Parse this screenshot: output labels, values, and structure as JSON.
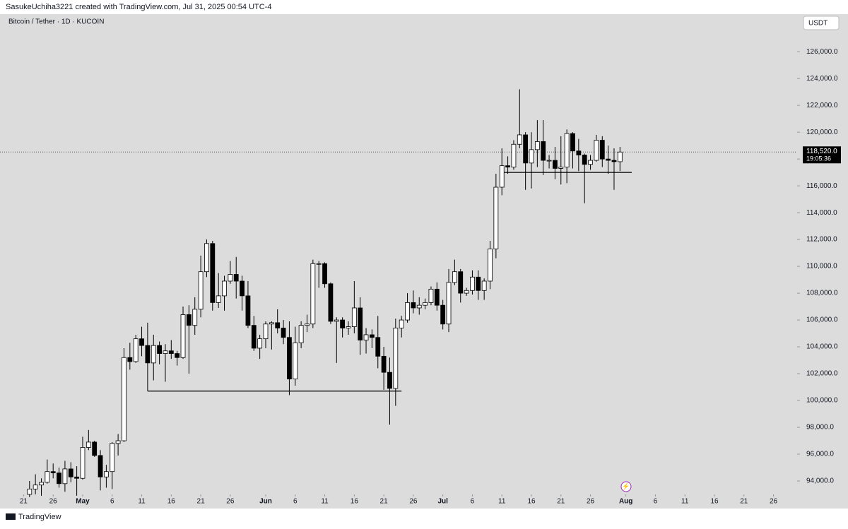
{
  "header": {
    "credit": "SasukeUchiha3221 created with TradingView.com, Jul 31, 2025 00:54 UTC-4",
    "brand": "TradingView"
  },
  "chart_data": {
    "type": "candlestick",
    "title": "Bitcoin / Tether · 1D · KUCOIN",
    "currency": "USDT",
    "x": [
      "2025-04-22",
      "2025-04-23",
      "2025-04-24",
      "2025-04-25",
      "2025-04-26",
      "2025-04-27",
      "2025-04-28",
      "2025-04-29",
      "2025-04-30",
      "2025-05-01",
      "2025-05-02",
      "2025-05-03",
      "2025-05-04",
      "2025-05-05",
      "2025-05-06",
      "2025-05-07",
      "2025-05-08",
      "2025-05-09",
      "2025-05-10",
      "2025-05-11",
      "2025-05-12",
      "2025-05-13",
      "2025-05-14",
      "2025-05-15",
      "2025-05-16",
      "2025-05-17",
      "2025-05-18",
      "2025-05-19",
      "2025-05-20",
      "2025-05-21",
      "2025-05-22",
      "2025-05-23",
      "2025-05-24",
      "2025-05-25",
      "2025-05-26",
      "2025-05-27",
      "2025-05-28",
      "2025-05-29",
      "2025-05-30",
      "2025-05-31",
      "2025-06-01",
      "2025-06-02",
      "2025-06-03",
      "2025-06-04",
      "2025-06-05",
      "2025-06-06",
      "2025-06-07",
      "2025-06-08",
      "2025-06-09",
      "2025-06-10",
      "2025-06-11",
      "2025-06-12",
      "2025-06-13",
      "2025-06-14",
      "2025-06-15",
      "2025-06-16",
      "2025-06-17",
      "2025-06-18",
      "2025-06-19",
      "2025-06-20",
      "2025-06-21",
      "2025-06-22",
      "2025-06-23",
      "2025-06-24",
      "2025-06-25",
      "2025-06-26",
      "2025-06-27",
      "2025-06-28",
      "2025-06-29",
      "2025-06-30",
      "2025-07-01",
      "2025-07-02",
      "2025-07-03",
      "2025-07-04",
      "2025-07-05",
      "2025-07-06",
      "2025-07-07",
      "2025-07-08",
      "2025-07-09",
      "2025-07-10",
      "2025-07-11",
      "2025-07-12",
      "2025-07-13",
      "2025-07-14",
      "2025-07-15",
      "2025-07-16",
      "2025-07-17",
      "2025-07-18",
      "2025-07-19",
      "2025-07-20",
      "2025-07-21",
      "2025-07-22",
      "2025-07-23",
      "2025-07-24",
      "2025-07-25",
      "2025-07-26",
      "2025-07-27",
      "2025-07-28",
      "2025-07-29",
      "2025-07-30",
      "2025-07-31"
    ],
    "open": [
      93000,
      93400,
      93700,
      93900,
      94700,
      94600,
      93800,
      94900,
      94300,
      94200,
      96500,
      96900,
      95900,
      94300,
      94700,
      96800,
      97000,
      103200,
      102900,
      104600,
      104100,
      102800,
      104100,
      103500,
      103700,
      103500,
      103200,
      106400,
      105600,
      106800,
      109600,
      111700,
      107300,
      107800,
      108900,
      109400,
      108900,
      107800,
      105600,
      103900,
      104600,
      105700,
      105800,
      105400,
      104700,
      101600,
      104300,
      105600,
      105700,
      110200,
      110200,
      108700,
      105900,
      106000,
      105400,
      105500,
      106900,
      104500,
      104900,
      104700,
      103300,
      102100,
      100900,
      105400,
      106000,
      107300,
      106900,
      107100,
      107300,
      108300,
      107100,
      105700,
      108800,
      109600,
      108000,
      108200,
      109200,
      108200,
      108900,
      111300,
      115900,
      117500,
      117400,
      119100,
      119800,
      117700,
      118700,
      119300,
      117900,
      117900,
      117300,
      117400,
      119900,
      118600,
      118300,
      117600,
      117900,
      119400,
      118000,
      117900,
      117800
    ],
    "high": [
      94000,
      94500,
      94200,
      95600,
      95300,
      95000,
      95500,
      95400,
      95100,
      97300,
      97800,
      97000,
      96300,
      95200,
      96900,
      97500,
      103900,
      104300,
      104900,
      105500,
      105800,
      104900,
      104400,
      104200,
      104500,
      103700,
      107000,
      107100,
      107700,
      110800,
      112000,
      111900,
      109500,
      109300,
      110400,
      110700,
      109300,
      108900,
      106300,
      104900,
      105900,
      105900,
      106800,
      106000,
      105900,
      105500,
      105900,
      106400,
      110500,
      110400,
      110300,
      108800,
      106200,
      106200,
      105900,
      108900,
      107700,
      105400,
      105300,
      106300,
      104000,
      103200,
      106100,
      106300,
      108000,
      108200,
      107700,
      107600,
      108500,
      108800,
      107500,
      109800,
      110500,
      109800,
      108400,
      109700,
      109700,
      109100,
      111900,
      116900,
      118800,
      118200,
      119400,
      123200,
      120000,
      120000,
      120900,
      120900,
      118300,
      118900,
      119700,
      120200,
      120000,
      119500,
      118400,
      118300,
      119800,
      119700,
      119000,
      118800,
      118900
    ],
    "low": [
      92800,
      93000,
      92900,
      93800,
      94200,
      93500,
      93200,
      93900,
      92900,
      94100,
      96300,
      95800,
      93300,
      93500,
      93400,
      95900,
      96900,
      102300,
      102800,
      103300,
      100700,
      101500,
      102700,
      101400,
      103100,
      102600,
      103100,
      102000,
      104900,
      106200,
      109200,
      106700,
      106900,
      106700,
      108700,
      107600,
      106700,
      105400,
      103700,
      103100,
      103900,
      103800,
      105000,
      104200,
      100400,
      101100,
      103900,
      105100,
      105400,
      108400,
      108400,
      105700,
      102800,
      104700,
      104900,
      105000,
      103400,
      103500,
      103900,
      102400,
      100800,
      98200,
      99600,
      104700,
      105800,
      106500,
      106400,
      106800,
      107100,
      106700,
      105300,
      105100,
      108600,
      107300,
      107800,
      107900,
      107500,
      107500,
      108300,
      110600,
      115300,
      116900,
      117200,
      118800,
      115700,
      115800,
      117400,
      116800,
      117300,
      116500,
      116100,
      116200,
      117300,
      117100,
      114700,
      117200,
      117800,
      117400,
      116900,
      115700,
      117100
    ],
    "close": [
      93400,
      93700,
      93900,
      94700,
      94600,
      93800,
      94900,
      94300,
      94200,
      96500,
      96900,
      95900,
      94300,
      94700,
      96800,
      97000,
      103200,
      102900,
      104600,
      104100,
      102800,
      104100,
      103500,
      103700,
      103500,
      103200,
      106400,
      105600,
      106800,
      109600,
      111700,
      107300,
      107800,
      108900,
      109400,
      108900,
      107800,
      105600,
      103900,
      104600,
      105700,
      105800,
      105400,
      104700,
      101600,
      104300,
      105600,
      105700,
      110200,
      110200,
      108700,
      105900,
      106000,
      105400,
      105500,
      106900,
      104500,
      104900,
      104700,
      103300,
      102100,
      100900,
      105400,
      106000,
      107300,
      106900,
      107100,
      107300,
      108300,
      107100,
      105700,
      108800,
      109600,
      108000,
      108200,
      109200,
      108200,
      108900,
      111300,
      115900,
      117500,
      117400,
      119100,
      119800,
      117700,
      118700,
      119300,
      117900,
      117900,
      117300,
      117400,
      119900,
      118600,
      118300,
      117600,
      117900,
      119400,
      118000,
      117900,
      117800,
      118520
    ],
    "up_color": "#ffffff",
    "down_color": "#000000",
    "wick_color": "#000000",
    "xlim": [
      "2025-04-17",
      "2025-08-30"
    ],
    "ylim": [
      93000,
      128800
    ],
    "xticks": [
      {
        "value": "2025-04-21",
        "label": "21"
      },
      {
        "value": "2025-04-26",
        "label": "26"
      },
      {
        "value": "2025-05-01",
        "label": "May"
      },
      {
        "value": "2025-05-06",
        "label": "6"
      },
      {
        "value": "2025-05-11",
        "label": "11"
      },
      {
        "value": "2025-05-16",
        "label": "16"
      },
      {
        "value": "2025-05-21",
        "label": "21"
      },
      {
        "value": "2025-05-26",
        "label": "26"
      },
      {
        "value": "2025-06-01",
        "label": "Jun"
      },
      {
        "value": "2025-06-06",
        "label": "6"
      },
      {
        "value": "2025-06-11",
        "label": "11"
      },
      {
        "value": "2025-06-16",
        "label": "16"
      },
      {
        "value": "2025-06-21",
        "label": "21"
      },
      {
        "value": "2025-06-26",
        "label": "26"
      },
      {
        "value": "2025-07-01",
        "label": "Jul"
      },
      {
        "value": "2025-07-06",
        "label": "6"
      },
      {
        "value": "2025-07-11",
        "label": "11"
      },
      {
        "value": "2025-07-16",
        "label": "16"
      },
      {
        "value": "2025-07-21",
        "label": "21"
      },
      {
        "value": "2025-07-26",
        "label": "26"
      },
      {
        "value": "2025-08-01",
        "label": "Aug"
      },
      {
        "value": "2025-08-06",
        "label": "6"
      },
      {
        "value": "2025-08-11",
        "label": "11"
      },
      {
        "value": "2025-08-16",
        "label": "16"
      },
      {
        "value": "2025-08-21",
        "label": "21"
      },
      {
        "value": "2025-08-26",
        "label": "26"
      }
    ],
    "yticks": [
      {
        "value": 94000,
        "label": "94,000.0"
      },
      {
        "value": 96000,
        "label": "96,000.0"
      },
      {
        "value": 98000,
        "label": "98,000.0"
      },
      {
        "value": 100000,
        "label": "100,000.0"
      },
      {
        "value": 102000,
        "label": "102,000.0"
      },
      {
        "value": 104000,
        "label": "104,000.0"
      },
      {
        "value": 106000,
        "label": "106,000.0"
      },
      {
        "value": 108000,
        "label": "108,000.0"
      },
      {
        "value": 110000,
        "label": "110,000.0"
      },
      {
        "value": 112000,
        "label": "112,000.0"
      },
      {
        "value": 114000,
        "label": "114,000.0"
      },
      {
        "value": 116000,
        "label": "116,000.0"
      },
      {
        "value": 118000,
        "label": "118,000.0"
      },
      {
        "value": 120000,
        "label": "120,000.0"
      },
      {
        "value": 122000,
        "label": "122,000.0"
      },
      {
        "value": 124000,
        "label": "124,000.0"
      },
      {
        "value": 126000,
        "label": "126,000.0"
      }
    ],
    "last_price": {
      "value": 118520,
      "label": "118,520.0"
    },
    "countdown": "19:05:36",
    "drawings": [
      {
        "from": "2025-05-12",
        "to": "2025-06-24",
        "price": 100700
      },
      {
        "from": "2025-07-11",
        "to": "2025-08-02",
        "price": 117000
      }
    ]
  }
}
